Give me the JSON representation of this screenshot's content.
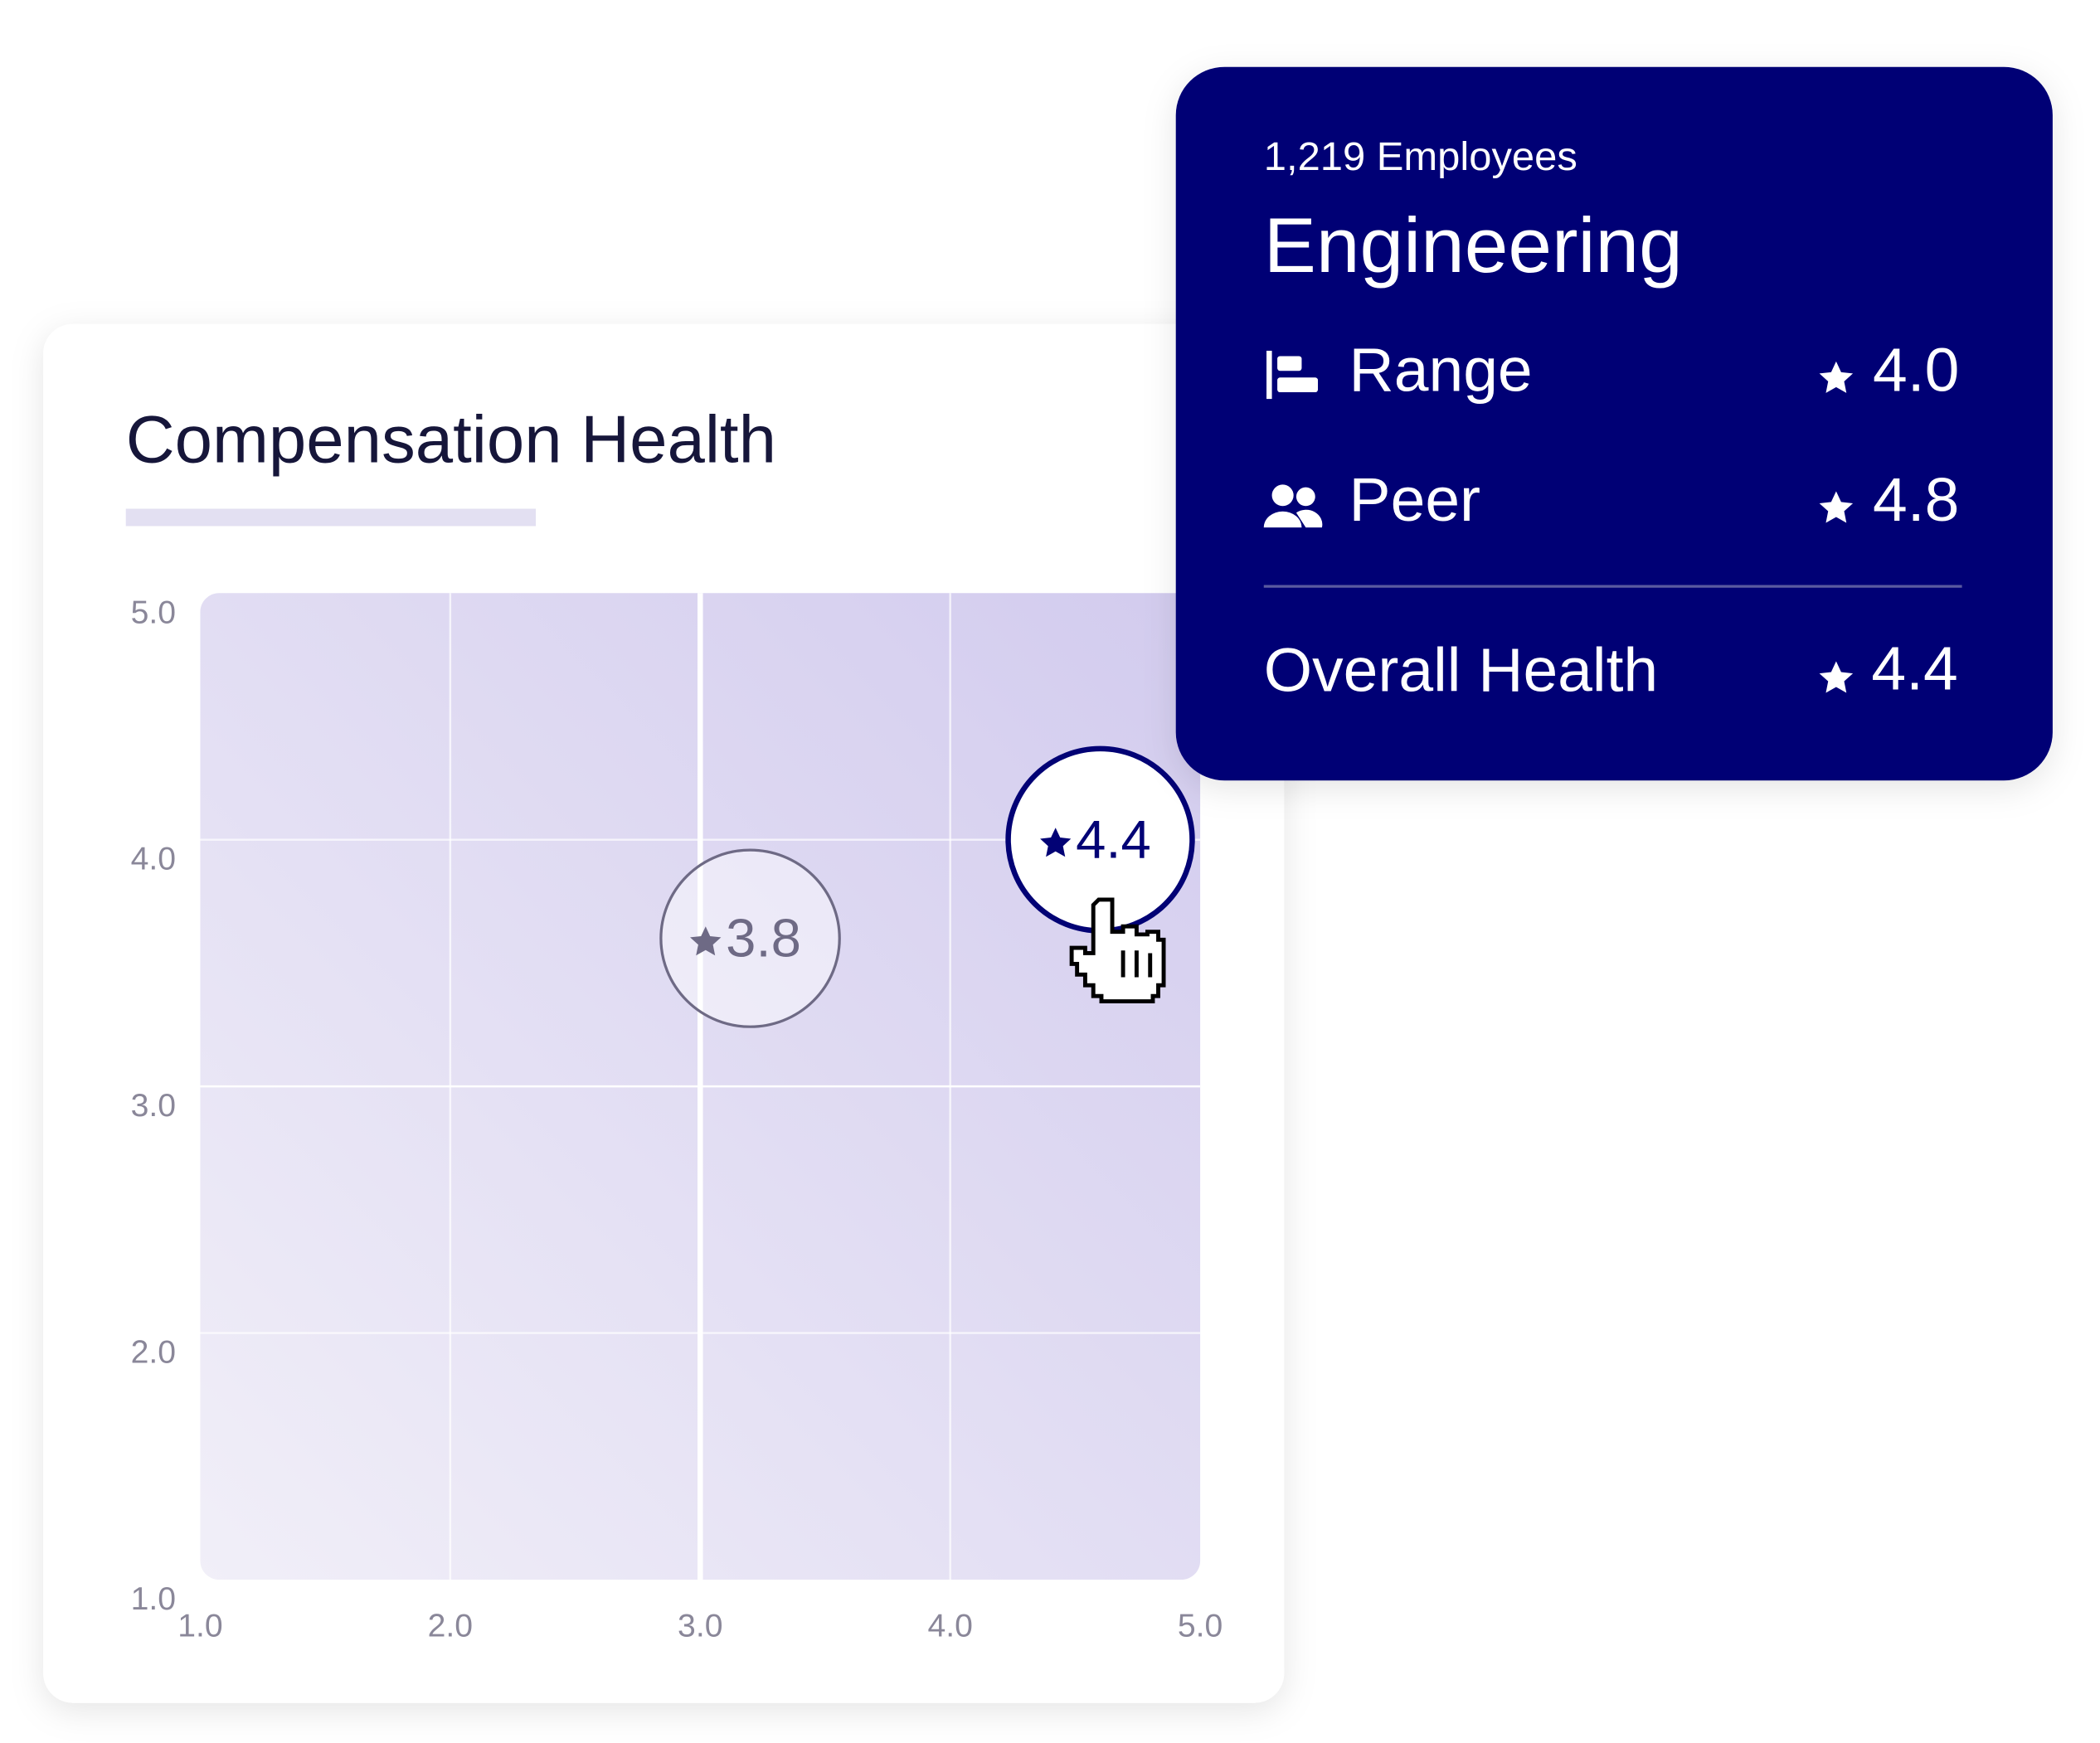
{
  "chart_data": {
    "type": "scatter",
    "title": "Compensation Health",
    "xlim": [
      1,
      5
    ],
    "ylim": [
      1,
      5
    ],
    "xticks": [
      {
        "value": 1,
        "label": "1.0"
      },
      {
        "value": 2,
        "label": "2.0"
      },
      {
        "value": 3,
        "label": "3.0"
      },
      {
        "value": 4,
        "label": "4.0"
      },
      {
        "value": 5,
        "label": "5.0"
      }
    ],
    "yticks": [
      {
        "value": 1,
        "label": "1.0"
      },
      {
        "value": 2,
        "label": "2.0"
      },
      {
        "value": 3,
        "label": "3.0"
      },
      {
        "value": 4,
        "label": "4.0"
      },
      {
        "value": 5,
        "label": "5.0"
      }
    ],
    "grid": true,
    "x": [
      3.2,
      4.6
    ],
    "values": [
      3.6,
      4.0
    ],
    "scores": [
      3.8,
      4.4
    ],
    "colors": [
      "#6e6a85",
      "#020275"
    ]
  },
  "tooltip": {
    "employees": "1,219 Employees",
    "title": "Engineering",
    "rows": [
      {
        "label": "Range",
        "score": "4.0"
      },
      {
        "label": "Peer",
        "score": "4.8"
      }
    ],
    "overall": {
      "label": "Overall Health",
      "score": "4.4"
    }
  }
}
